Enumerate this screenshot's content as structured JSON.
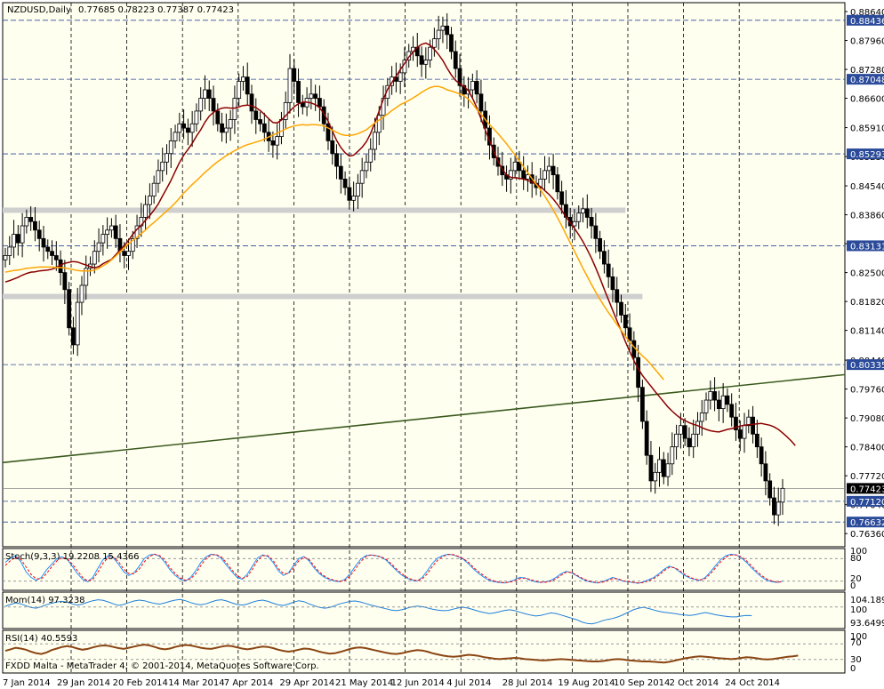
{
  "header": {
    "symbol": "NZDUSD,Daily",
    "quote": "0.77685 0.78223 0.77387 0.77423"
  },
  "footer": {
    "copyright": "FXDD Malta - MetaTrader 4, © 2001-2014, MetaQuotes Software Corp."
  },
  "colors": {
    "background": "#fffff0",
    "candle": "#000000",
    "ma_fast": "#8b0000",
    "ma_slow": "#ffa500",
    "trendline": "#3b5a1e",
    "zone": "#cfcfcf",
    "level_line": "#2a4a9a",
    "stoch_main": "#1e90ff",
    "stoch_signal": "#ff0000",
    "momentum": "#1e7fd8",
    "rsi": "#8b4513"
  },
  "chart_data": {
    "type": "candlestick",
    "price_scale": {
      "ylim": [
        0.7605,
        0.8885
      ],
      "tick_labels": [
        "0.88640",
        "0.87960",
        "0.87280",
        "0.86600",
        "0.85910",
        "0.85230",
        "0.84540",
        "0.83860",
        "0.83180",
        "0.82500",
        "0.81820",
        "0.81140",
        "0.80440",
        "0.79760",
        "0.79080",
        "0.78400",
        "0.77720",
        "0.77040",
        "0.76360"
      ]
    },
    "level_labels": [
      {
        "label": "0.88436",
        "value": 0.88436
      },
      {
        "label": "0.87048",
        "value": 0.87048
      },
      {
        "label": "0.85293",
        "value": 0.85293
      },
      {
        "label": "0.83131",
        "value": 0.83131
      },
      {
        "label": "0.80335",
        "value": 0.80335
      },
      {
        "label": "0.77423",
        "value": 0.77423,
        "current": true
      },
      {
        "label": "0.77120",
        "value": 0.7712
      },
      {
        "label": "0.76632",
        "value": 0.76632
      }
    ],
    "zones": [
      {
        "from": 0.8395,
        "to": 0.8403,
        "until_index": 146
      },
      {
        "from": 0.8192,
        "to": 0.82,
        "until_index": 150
      }
    ],
    "trendline": {
      "start": [
        0,
        0.7803
      ],
      "end": [
        195,
        0.801
      ]
    },
    "dates": [
      "7 Jan 2014",
      "29 Jan 2014",
      "20 Feb 2014",
      "14 Mar 2014",
      "7 Apr 2014",
      "29 Apr 2014",
      "21 May 2014",
      "12 Jun 2014",
      "4 Jul 2014",
      "28 Jul 2014",
      "19 Aug 2014",
      "10 Sep 2014",
      "2 Oct 2014",
      "24 Oct 2014"
    ],
    "closes": [
      0.829,
      0.831,
      0.834,
      0.832,
      0.836,
      0.838,
      0.837,
      0.835,
      0.833,
      0.831,
      0.83,
      0.829,
      0.828,
      0.825,
      0.821,
      0.812,
      0.808,
      0.818,
      0.822,
      0.826,
      0.827,
      0.83,
      0.832,
      0.834,
      0.835,
      0.836,
      0.833,
      0.83,
      0.829,
      0.83,
      0.833,
      0.836,
      0.838,
      0.841,
      0.843,
      0.846,
      0.849,
      0.851,
      0.853,
      0.856,
      0.858,
      0.86,
      0.859,
      0.858,
      0.86,
      0.863,
      0.866,
      0.868,
      0.866,
      0.863,
      0.86,
      0.858,
      0.859,
      0.861,
      0.866,
      0.87,
      0.871,
      0.867,
      0.863,
      0.861,
      0.86,
      0.858,
      0.856,
      0.855,
      0.857,
      0.861,
      0.865,
      0.873,
      0.87,
      0.865,
      0.864,
      0.866,
      0.867,
      0.866,
      0.864,
      0.86,
      0.856,
      0.853,
      0.85,
      0.847,
      0.845,
      0.842,
      0.843,
      0.846,
      0.849,
      0.851,
      0.854,
      0.858,
      0.862,
      0.866,
      0.869,
      0.871,
      0.87,
      0.872,
      0.875,
      0.877,
      0.878,
      0.876,
      0.874,
      0.875,
      0.878,
      0.88,
      0.882,
      0.883,
      0.881,
      0.877,
      0.873,
      0.869,
      0.867,
      0.868,
      0.87,
      0.867,
      0.863,
      0.859,
      0.855,
      0.852,
      0.85,
      0.848,
      0.847,
      0.849,
      0.851,
      0.849,
      0.847,
      0.848,
      0.846,
      0.845,
      0.847,
      0.849,
      0.85,
      0.848,
      0.844,
      0.841,
      0.838,
      0.836,
      0.837,
      0.839,
      0.84,
      0.838,
      0.836,
      0.833,
      0.83,
      0.827,
      0.824,
      0.821,
      0.818,
      0.815,
      0.812,
      0.809,
      0.805,
      0.798,
      0.79,
      0.782,
      0.776,
      0.778,
      0.781,
      0.777,
      0.78,
      0.784,
      0.787,
      0.789,
      0.786,
      0.784,
      0.787,
      0.79,
      0.792,
      0.795,
      0.797,
      0.795,
      0.793,
      0.796,
      0.794,
      0.791,
      0.788,
      0.786,
      0.789,
      0.791,
      0.787,
      0.784,
      0.78,
      0.776,
      0.772,
      0.768,
      0.771,
      0.77423
    ],
    "ma_fast": [
      0.8228,
      0.8231,
      0.8235,
      0.8239,
      0.8244,
      0.8248,
      0.8251,
      0.8252,
      0.8254,
      0.8255,
      0.8256,
      0.8258,
      0.8262,
      0.8268,
      0.8272,
      0.8274,
      0.8276,
      0.8275,
      0.8271,
      0.8268,
      0.8264,
      0.8261,
      0.8264,
      0.8271,
      0.8276,
      0.8281,
      0.8292,
      0.8303,
      0.8313,
      0.8326,
      0.834,
      0.8352,
      0.8361,
      0.8373,
      0.8384,
      0.8397,
      0.8411,
      0.843,
      0.8448,
      0.8467,
      0.8488,
      0.8509,
      0.8526,
      0.854,
      0.8554,
      0.8571,
      0.8586,
      0.8604,
      0.8618,
      0.8627,
      0.8633,
      0.8637,
      0.8638,
      0.8637,
      0.8637,
      0.864,
      0.8643,
      0.8644,
      0.8642,
      0.8638,
      0.8631,
      0.8622,
      0.8612,
      0.8603,
      0.8602,
      0.8609,
      0.8619,
      0.863,
      0.864,
      0.8647,
      0.8651,
      0.8651,
      0.8649,
      0.8645,
      0.8638,
      0.8624,
      0.8606,
      0.8583,
      0.8561,
      0.8544,
      0.8532,
      0.8524,
      0.8526,
      0.8535,
      0.8545,
      0.8558,
      0.8577,
      0.8603,
      0.863,
      0.8658,
      0.8681,
      0.8697,
      0.8712,
      0.8728,
      0.8742,
      0.8757,
      0.8769,
      0.878,
      0.8787,
      0.879,
      0.8785,
      0.8775,
      0.8763,
      0.8749,
      0.8731,
      0.8715,
      0.8702,
      0.8694,
      0.8688,
      0.8678,
      0.866,
      0.8638,
      0.8612,
      0.8585,
      0.856,
      0.8535,
      0.8512,
      0.8493,
      0.848,
      0.8474,
      0.8473,
      0.8472,
      0.847,
      0.8467,
      0.8463,
      0.8458,
      0.8452,
      0.8443,
      0.8434,
      0.8423,
      0.841,
      0.8396,
      0.8381,
      0.8367,
      0.8354,
      0.8339,
      0.8323,
      0.8304,
      0.8284,
      0.8261,
      0.8237,
      0.8211,
      0.8186,
      0.8161,
      0.8137,
      0.8113,
      0.8087,
      0.8064,
      0.8043,
      0.8024,
      0.8008,
      0.7995,
      0.7983,
      0.797,
      0.7958,
      0.7946,
      0.7934,
      0.7924,
      0.7915,
      0.7907,
      0.7902,
      0.7897,
      0.7893,
      0.789,
      0.7885,
      0.7881,
      0.7878,
      0.7876,
      0.7875,
      0.7878,
      0.7881,
      0.7883,
      0.7886,
      0.7889,
      0.7891,
      0.7892,
      0.7893,
      0.7894,
      0.7895,
      0.7893,
      0.7891,
      0.7887,
      0.7881,
      0.7873,
      0.7864,
      0.7854,
      0.7843
    ],
    "ma_slow": [
      0.8251,
      0.8253,
      0.8255,
      0.8256,
      0.8258,
      0.826,
      0.8261,
      0.8262,
      0.8263,
      0.8263,
      0.8263,
      0.8263,
      0.8262,
      0.8262,
      0.8261,
      0.8259,
      0.8257,
      0.8255,
      0.8254,
      0.8254,
      0.8254,
      0.8256,
      0.826,
      0.8266,
      0.8272,
      0.828,
      0.8289,
      0.8299,
      0.8308,
      0.8318,
      0.8326,
      0.8333,
      0.8342,
      0.835,
      0.836,
      0.8368,
      0.8377,
      0.8386,
      0.8395,
      0.8404,
      0.8414,
      0.8425,
      0.8437,
      0.8447,
      0.8457,
      0.8466,
      0.8476,
      0.8486,
      0.8494,
      0.8503,
      0.8511,
      0.8518,
      0.8525,
      0.8531,
      0.8537,
      0.8542,
      0.8547,
      0.8551,
      0.8554,
      0.8557,
      0.856,
      0.8564,
      0.8569,
      0.8574,
      0.8578,
      0.8583,
      0.8588,
      0.8592,
      0.8595,
      0.8597,
      0.8598,
      0.8597,
      0.8598,
      0.8598,
      0.8597,
      0.8595,
      0.859,
      0.8585,
      0.858,
      0.8575,
      0.8573,
      0.8573,
      0.8574,
      0.8577,
      0.8581,
      0.8586,
      0.8594,
      0.8602,
      0.8609,
      0.8616,
      0.8623,
      0.8631,
      0.8638,
      0.8645,
      0.865,
      0.8655,
      0.8661,
      0.8667,
      0.8674,
      0.868,
      0.8685,
      0.8688,
      0.8688,
      0.8685,
      0.868,
      0.8677,
      0.8674,
      0.867,
      0.8666,
      0.8658,
      0.8647,
      0.8634,
      0.8623,
      0.861,
      0.8598,
      0.8588,
      0.8577,
      0.8565,
      0.8553,
      0.854,
      0.8527,
      0.8513,
      0.8499,
      0.8485,
      0.8471,
      0.8458,
      0.8445,
      0.843,
      0.8414,
      0.8397,
      0.8379,
      0.836,
      0.834,
      0.832,
      0.83,
      0.828,
      0.826,
      0.8241,
      0.8222,
      0.8204,
      0.8187,
      0.8171,
      0.8156,
      0.8142,
      0.8128,
      0.8114,
      0.81,
      0.8087,
      0.8075,
      0.8064,
      0.8054,
      0.8045,
      0.8034,
      0.8022,
      0.801,
      0.7998
    ]
  },
  "stochastic": {
    "label": "Stoch(9,3,3) 19.2208 15.4366",
    "scale_labels": [
      "100",
      "80",
      "20",
      "0"
    ],
    "main": [
      70,
      82,
      88,
      72,
      45,
      30,
      22,
      30,
      50,
      65,
      80,
      85,
      78,
      60,
      40,
      25,
      18,
      30,
      55,
      78,
      88,
      82,
      65,
      45,
      35,
      42,
      60,
      80,
      90,
      92,
      86,
      70,
      50,
      35,
      25,
      20,
      30,
      48,
      70,
      85,
      92,
      90,
      80,
      62,
      45,
      30,
      25,
      38,
      60,
      82,
      90,
      86,
      70,
      48,
      35,
      42,
      62,
      80,
      86,
      74,
      55,
      40,
      30,
      24,
      20,
      18,
      25,
      40,
      60,
      78,
      88,
      90,
      88,
      84,
      76,
      62,
      48,
      36,
      28,
      22,
      20,
      30,
      48,
      68,
      82,
      88,
      92,
      90,
      85,
      78,
      66,
      52,
      40,
      30,
      22,
      18,
      16,
      15,
      18,
      24,
      30,
      28,
      22,
      18,
      16,
      18,
      22,
      30,
      40,
      46,
      42,
      34,
      26,
      20,
      17,
      15,
      18,
      24,
      30,
      25,
      20,
      18,
      16,
      14,
      18,
      24,
      30,
      40,
      52,
      60,
      55,
      45,
      35,
      28,
      24,
      22,
      30,
      45,
      62,
      78,
      88,
      92,
      90,
      82,
      70,
      55,
      42,
      30,
      22,
      18,
      16,
      20
    ],
    "signal": [
      62,
      75,
      84,
      78,
      58,
      38,
      26,
      26,
      40,
      58,
      74,
      83,
      80,
      66,
      48,
      30,
      20,
      24,
      45,
      68,
      84,
      84,
      72,
      52,
      40,
      40,
      52,
      72,
      86,
      92,
      88,
      76,
      56,
      40,
      28,
      22,
      26,
      40,
      62,
      80,
      90,
      91,
      84,
      68,
      50,
      35,
      27,
      32,
      52,
      75,
      88,
      88,
      76,
      54,
      40,
      40,
      55,
      74,
      84,
      78,
      60,
      44,
      33,
      26,
      22,
      19,
      22,
      34,
      52,
      72,
      85,
      90,
      88,
      85,
      78,
      66,
      52,
      40,
      30,
      24,
      21,
      26,
      40,
      60,
      76,
      86,
      91,
      91,
      86,
      80,
      70,
      56,
      44,
      34,
      25,
      20,
      17,
      16,
      17,
      21,
      27,
      28,
      24,
      20,
      17,
      17,
      20,
      26,
      36,
      44,
      43,
      36,
      28,
      22,
      18,
      16,
      17,
      21,
      27,
      26,
      21,
      19,
      17,
      15,
      16,
      21,
      27,
      36,
      48,
      57,
      56,
      48,
      38,
      30,
      25,
      23,
      27,
      40,
      56,
      72,
      84,
      90,
      90,
      85,
      74,
      60,
      46,
      34,
      25,
      20,
      17,
      18
    ],
    "ylim": [
      0,
      100
    ]
  },
  "momentum": {
    "label": "Mom(14) 97.3238",
    "scale_labels": [
      "104.1892",
      "100",
      "93.6499"
    ],
    "values": [
      100.2,
      100.8,
      101.3,
      101.0,
      100.4,
      99.8,
      99.6,
      100.1,
      100.7,
      101.2,
      101.6,
      101.8,
      101.5,
      101.0,
      100.6,
      100.9,
      101.5,
      102.0,
      102.3,
      102.1,
      101.6,
      101.0,
      100.5,
      100.8,
      101.4,
      101.9,
      102.2,
      102.0,
      101.5,
      101.1,
      100.9,
      101.3,
      101.8,
      102.2,
      102.4,
      102.0,
      101.4,
      100.9,
      100.7,
      101.0,
      101.6,
      102.1,
      102.3,
      101.9,
      101.3,
      100.8,
      100.6,
      100.9,
      101.5,
      102.0,
      102.2,
      101.8,
      101.2,
      100.7,
      100.5,
      100.9,
      101.5,
      102.0,
      101.7,
      101.0,
      100.4,
      99.9,
      99.6,
      99.8,
      100.4,
      101.0,
      101.4,
      101.8,
      101.9,
      101.6,
      101.1,
      100.6,
      100.2,
      99.8,
      99.4,
      99.0,
      98.8,
      99.1,
      99.6,
      100.0,
      100.3,
      100.1,
      99.7,
      99.3,
      99.0,
      98.8,
      98.9,
      99.3,
      99.7,
      99.9,
      99.6,
      99.1,
      98.6,
      98.2,
      97.9,
      98.1,
      98.5,
      98.9,
      99.1,
      98.8,
      98.3,
      97.8,
      97.4,
      97.1,
      97.3,
      97.7,
      98.1,
      97.9,
      97.4,
      96.9,
      96.4,
      95.9,
      95.2,
      94.7,
      94.6,
      95.0,
      95.6,
      96.0,
      96.3,
      96.8,
      97.5,
      98.3,
      99.1,
      99.6,
      99.9,
      99.5,
      99.0,
      98.6,
      98.3,
      98.1,
      97.9,
      97.6,
      97.4,
      97.3,
      97.5,
      97.9,
      98.2,
      97.9,
      97.5,
      97.2,
      97.0,
      96.8,
      96.8,
      97.1,
      97.3,
      97.2
    ],
    "ylim": [
      93.6499,
      104.1892
    ]
  },
  "rsi": {
    "label": "RSI(14) 40.5593",
    "scale_labels": [
      "100",
      "70",
      "30",
      "0"
    ],
    "values": [
      52,
      56,
      60,
      58,
      55,
      50,
      46,
      44,
      48,
      54,
      58,
      62,
      64,
      62,
      58,
      55,
      57,
      61,
      64,
      66,
      65,
      62,
      59,
      57,
      60,
      63,
      66,
      68,
      66,
      62,
      58,
      56,
      58,
      62,
      65,
      67,
      66,
      63,
      60,
      58,
      57,
      60,
      63,
      65,
      64,
      61,
      58,
      56,
      58,
      61,
      63,
      62,
      59,
      55,
      52,
      50,
      52,
      55,
      58,
      57,
      54,
      50,
      47,
      45,
      46,
      49,
      53,
      57,
      60,
      61,
      59,
      56,
      53,
      50,
      47,
      45,
      44,
      46,
      49,
      52,
      54,
      53,
      50,
      46,
      43,
      40,
      38,
      37,
      38,
      40,
      42,
      41,
      39,
      36,
      34,
      32,
      31,
      32,
      33,
      34,
      33,
      31,
      30,
      29,
      28,
      28,
      29,
      30,
      31,
      30,
      29,
      28,
      27,
      26,
      25,
      25,
      26,
      28,
      30,
      31,
      30,
      28,
      27,
      26,
      25,
      25,
      24,
      23,
      22,
      24,
      27,
      30,
      33,
      35,
      37,
      38,
      37,
      36,
      34,
      33,
      32,
      31,
      32,
      34,
      36,
      35,
      33,
      31,
      30,
      31,
      33,
      35,
      37,
      38,
      40
    ],
    "ylim": [
      0,
      100
    ]
  }
}
